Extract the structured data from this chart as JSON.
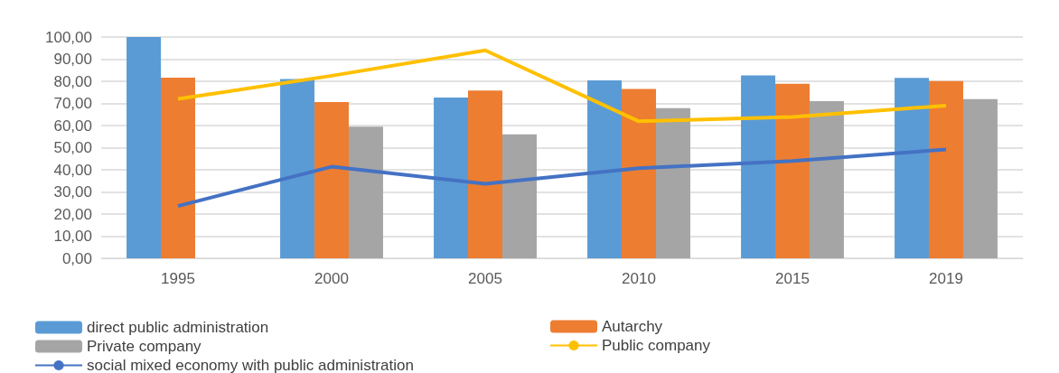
{
  "chart_data": {
    "type": "bar",
    "categories": [
      "1995",
      "2000",
      "2005",
      "2010",
      "2015",
      "2019"
    ],
    "series": [
      {
        "name": "direct public administration",
        "color": "#5b9bd5",
        "values": [
          100,
          81,
          72.7,
          80.4,
          82.7,
          81.5
        ]
      },
      {
        "name": "Autarchy",
        "color": "#ed7d31",
        "values": [
          81.6,
          70.6,
          75.8,
          76.5,
          78.9,
          80.1
        ]
      },
      {
        "name": "Private company",
        "color": "#a5a5a5",
        "values": [
          null,
          59.5,
          56,
          67.9,
          71,
          71.9
        ]
      },
      {
        "name": "Public company",
        "type": "line",
        "color": "#ffc000",
        "values": [
          72,
          82.5,
          94,
          61.9,
          63.9,
          69
        ]
      },
      {
        "name": "social mixed economy with public administration",
        "type": "line",
        "color": "#4472c4",
        "values": [
          23.6,
          41.4,
          33.7,
          40.7,
          44,
          49.2
        ]
      }
    ],
    "ylim": [
      0,
      100
    ],
    "yticks": [
      {
        "value": 0,
        "label": "0,00"
      },
      {
        "value": 10,
        "label": "10,00"
      },
      {
        "value": 20,
        "label": "20,00"
      },
      {
        "value": 30,
        "label": "30,00"
      },
      {
        "value": 40,
        "label": "40,00"
      },
      {
        "value": 50,
        "label": "50,00"
      },
      {
        "value": 60,
        "label": "60,00"
      },
      {
        "value": 70,
        "label": "70,00"
      },
      {
        "value": 80,
        "label": "80,00"
      },
      {
        "value": 90,
        "label": "90,00"
      },
      {
        "value": 100,
        "label": "100,00"
      }
    ],
    "grid": "y",
    "legend": "bottom",
    "marker": "none"
  }
}
